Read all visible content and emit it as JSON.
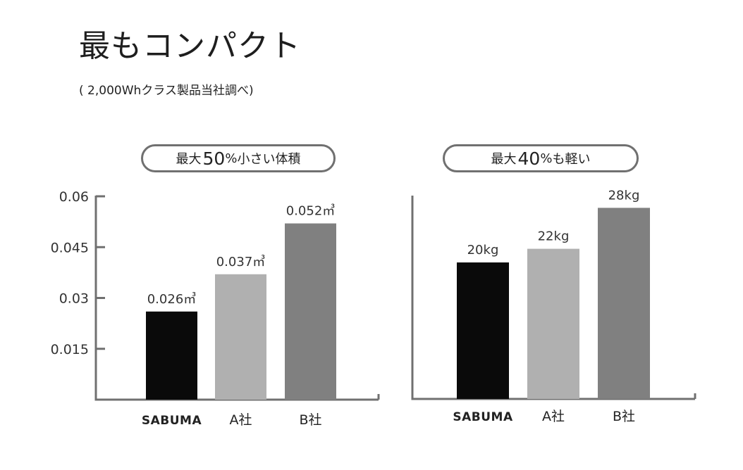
{
  "header": {
    "title": "最もコンパクト",
    "subtitle": "( 2,000Whクラス製品当社調べ)"
  },
  "colors": {
    "sabuma": "#0a0a0a",
    "company_a": "#b0b0b0",
    "company_b": "#808080",
    "axis": "#707070",
    "pill_border": "#707070"
  },
  "chart_data": [
    {
      "type": "bar",
      "badge": {
        "prefix": "最大",
        "number": "50",
        "percent": "%",
        "suffix": "小さい体積"
      },
      "categories": [
        "SABUMA",
        "A社",
        "B社"
      ],
      "values": [
        0.026,
        0.037,
        0.052
      ],
      "data_labels": [
        "0.026㎥",
        "0.037㎥",
        "0.052㎥"
      ],
      "yticks": [
        0.015,
        0.03,
        0.045,
        0.06
      ],
      "ytick_labels": [
        "0.015",
        "0.03",
        "0.045",
        "0.06"
      ],
      "ylim": [
        0,
        0.06
      ],
      "grid": false
    },
    {
      "type": "bar",
      "badge": {
        "prefix": "最大",
        "number": "40",
        "percent": "%",
        "suffix": "も軽い"
      },
      "categories": [
        "SABUMA",
        "A社",
        "B社"
      ],
      "values": [
        20,
        22,
        28
      ],
      "data_labels": [
        "20kg",
        "22kg",
        "28kg"
      ],
      "grid": false
    }
  ]
}
